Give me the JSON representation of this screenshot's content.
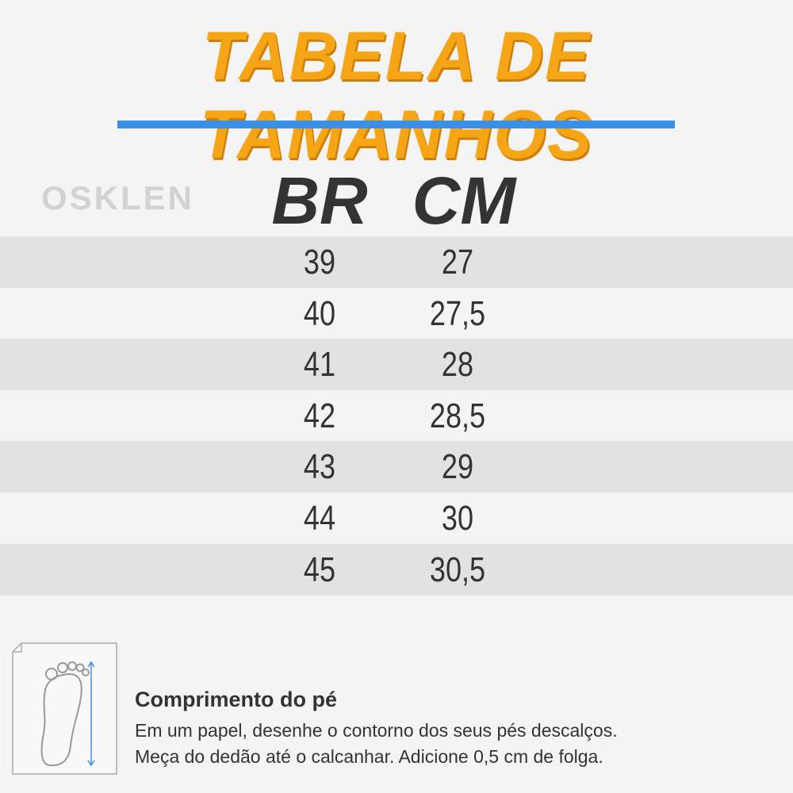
{
  "header": {
    "title": "TABELA DE TAMANHOS"
  },
  "table": {
    "brand": "OSKLEN",
    "columns": [
      "BR",
      "CM"
    ],
    "rows": [
      [
        "39",
        "27"
      ],
      [
        "40",
        "27,5"
      ],
      [
        "41",
        "28"
      ],
      [
        "42",
        "28,5"
      ],
      [
        "43",
        "29"
      ],
      [
        "44",
        "30"
      ],
      [
        "45",
        "30,5"
      ]
    ]
  },
  "footer": {
    "heading": "Comprimento do pé",
    "lines": [
      "Em um papel, desenhe o contorno dos seus pés descalços.",
      "Meça do dedão até o calcanhar. Adicione 0,5 cm de folga."
    ]
  }
}
